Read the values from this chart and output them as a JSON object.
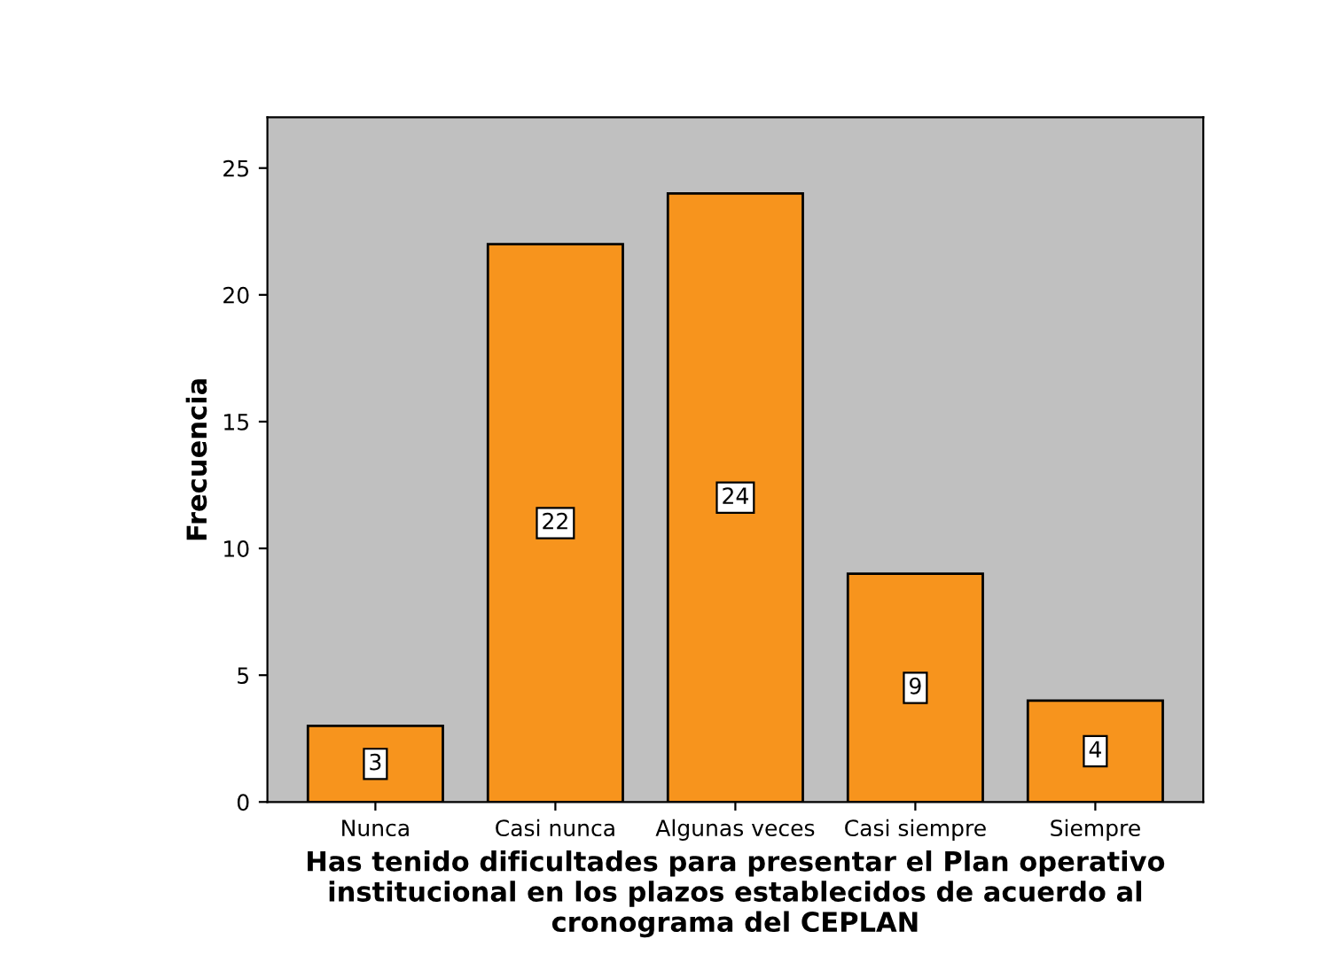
{
  "chart_data": {
    "type": "bar",
    "categories": [
      "Nunca",
      "Casi nunca",
      "Algunas veces",
      "Casi siempre",
      "Siempre"
    ],
    "values": [
      3,
      22,
      24,
      9,
      4
    ],
    "color": "#f7941d",
    "xlabel": "Has tenido dificultades para presentar el Plan operativo\ninstitucional en los plazos establecidos de acuerdo al\ncronograma del CEPLAN",
    "ylabel": "Frecuencia",
    "ylim": [
      0,
      27
    ],
    "yticks": [
      0,
      5,
      10,
      15,
      20,
      25
    ],
    "grid": false,
    "legend": false,
    "data_labels": true
  }
}
